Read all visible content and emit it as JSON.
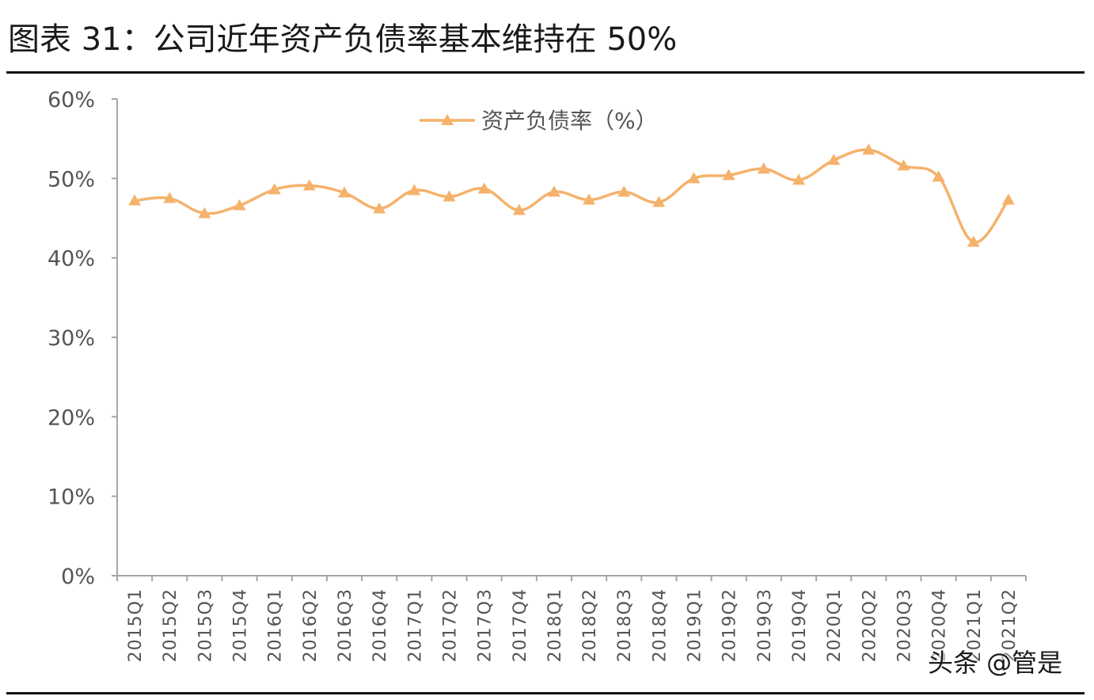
{
  "header": {
    "title": "图表 31：公司近年资产负债率基本维持在 50%"
  },
  "watermark": {
    "text": "头条 @管是"
  },
  "colors": {
    "series": "#f5b26b",
    "axis": "#a6a6a6",
    "rule": "#111111"
  },
  "chart_data": {
    "type": "line",
    "title": "",
    "xlabel": "",
    "ylabel": "",
    "y_ticks": [
      "0%",
      "10%",
      "20%",
      "30%",
      "40%",
      "50%",
      "60%"
    ],
    "ylim": [
      0,
      60
    ],
    "grid": false,
    "legend_position": "top-center",
    "marker": "triangle",
    "categories": [
      "2015Q1",
      "2015Q2",
      "2015Q3",
      "2015Q4",
      "2016Q1",
      "2016Q2",
      "2016Q3",
      "2016Q4",
      "2017Q1",
      "2017Q2",
      "2017Q3",
      "2017Q4",
      "2018Q1",
      "2018Q2",
      "2018Q3",
      "2018Q4",
      "2019Q1",
      "2019Q2",
      "2019Q3",
      "2019Q4",
      "2020Q1",
      "2020Q2",
      "2020Q3",
      "2020Q4",
      "2021Q1",
      "2021Q2"
    ],
    "series": [
      {
        "name": "资产负债率（%）",
        "values": [
          47.2,
          47.5,
          45.6,
          46.6,
          48.6,
          49.1,
          48.2,
          46.2,
          48.5,
          47.7,
          48.7,
          46.0,
          48.3,
          47.3,
          48.3,
          47.0,
          50.0,
          50.4,
          51.2,
          49.8,
          52.3,
          53.6,
          51.6,
          50.2,
          42.0,
          47.3
        ]
      }
    ]
  }
}
